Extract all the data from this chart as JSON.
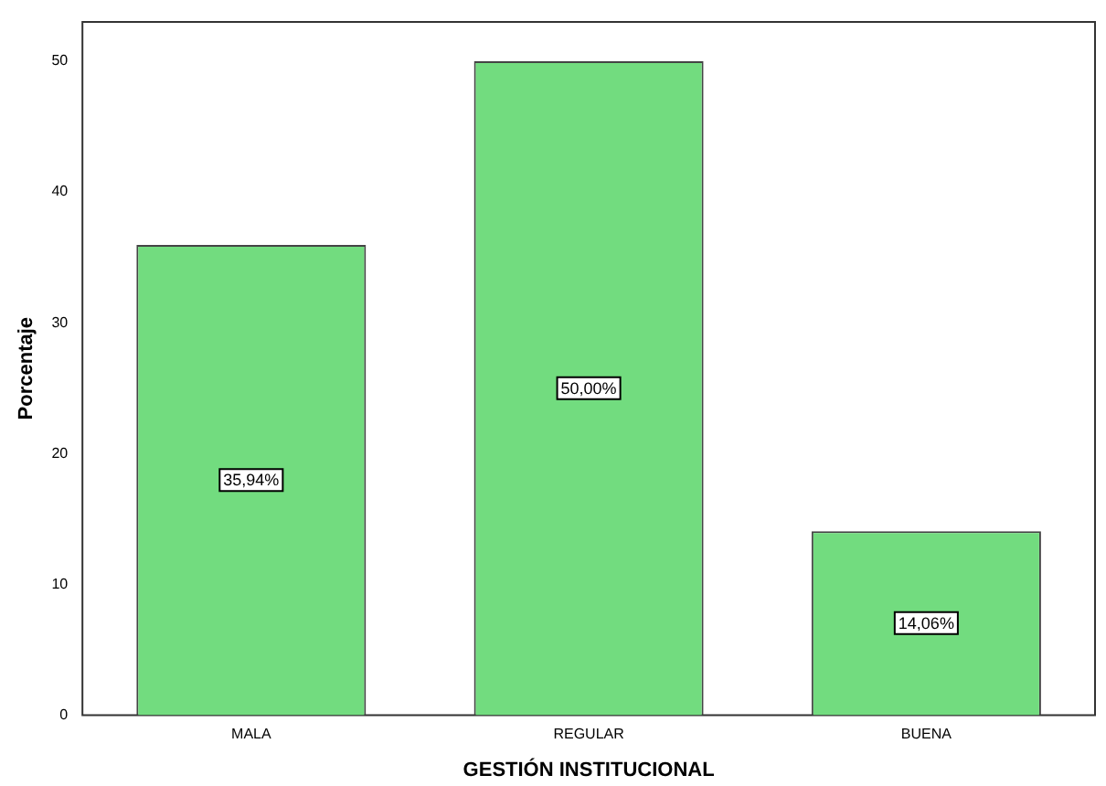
{
  "chart_data": {
    "type": "bar",
    "xlabel": "GESTIÓN INSTITUCIONAL",
    "ylabel": "Porcentaje",
    "categories": [
      "MALA",
      "REGULAR",
      "BUENA"
    ],
    "values": [
      35.94,
      50.0,
      14.06
    ],
    "value_labels": [
      "35,94%",
      "50,00%",
      "14,06%"
    ],
    "color": "#72dc7f",
    "ylim": [
      0,
      53
    ],
    "yticks": [
      0,
      10,
      20,
      30,
      40,
      50
    ],
    "grid": false,
    "legend": false
  }
}
